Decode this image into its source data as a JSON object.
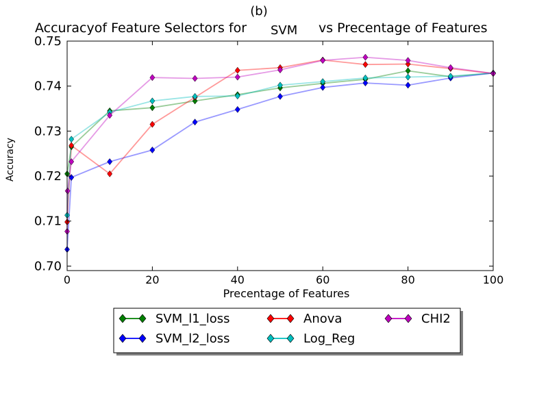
{
  "chart_data": {
    "type": "line",
    "label_top": "(b)",
    "title_left": "Accuracyof Feature Selectors for",
    "title_mid": "SVM",
    "title_right": "vs Precentage of Features",
    "xlabel": "Precentage of Features",
    "ylabel": "Accuracy",
    "xlim": [
      0,
      100
    ],
    "ylim": [
      0.699,
      0.75
    ],
    "xticks": [
      {
        "v": 0,
        "label": "0"
      },
      {
        "v": 20,
        "label": "20"
      },
      {
        "v": 40,
        "label": "40"
      },
      {
        "v": 60,
        "label": "60"
      },
      {
        "v": 80,
        "label": "80"
      },
      {
        "v": 100,
        "label": "100"
      }
    ],
    "yticks": [
      {
        "v": 0.7,
        "label": "0.70"
      },
      {
        "v": 0.71,
        "label": "0.71"
      },
      {
        "v": 0.72,
        "label": "0.72"
      },
      {
        "v": 0.73,
        "label": "0.73"
      },
      {
        "v": 0.74,
        "label": "0.74"
      },
      {
        "v": 0.75,
        "label": "0.75"
      }
    ],
    "grid": false,
    "legend_position": "below",
    "series": [
      {
        "name": "SVM_l1_loss",
        "color": "#008000",
        "x": [
          0,
          1,
          10,
          20,
          30,
          40,
          50,
          60,
          70,
          80,
          90,
          100
        ],
        "y": [
          0.7205,
          0.7265,
          0.7345,
          0.7352,
          0.7367,
          0.7381,
          0.7396,
          0.7406,
          0.7415,
          0.7434,
          0.7421,
          0.7429
        ]
      },
      {
        "name": "SVM_l2_loss",
        "color": "#0000ff",
        "x": [
          0,
          1,
          10,
          20,
          30,
          40,
          50,
          60,
          70,
          80,
          90,
          100
        ],
        "y": [
          0.7037,
          0.7197,
          0.7232,
          0.7258,
          0.732,
          0.7348,
          0.7377,
          0.7397,
          0.7407,
          0.7402,
          0.7418,
          0.7429
        ]
      },
      {
        "name": "Anova",
        "color": "#ff0000",
        "x": [
          0,
          1,
          10,
          20,
          30,
          40,
          50,
          60,
          70,
          80,
          90,
          100
        ],
        "y": [
          0.7098,
          0.7268,
          0.7205,
          0.7315,
          0.7375,
          0.7435,
          0.7441,
          0.7458,
          0.7448,
          0.7449,
          0.7439,
          0.7428
        ]
      },
      {
        "name": "Log_Reg",
        "color": "#00bfbf",
        "x": [
          0,
          1,
          10,
          20,
          30,
          40,
          50,
          60,
          70,
          80,
          90,
          100
        ],
        "y": [
          0.7113,
          0.7282,
          0.7342,
          0.7367,
          0.7377,
          0.7378,
          0.7402,
          0.741,
          0.7418,
          0.742,
          0.7422,
          0.7429
        ]
      },
      {
        "name": "CHI2",
        "color": "#bf00bf",
        "x": [
          0,
          0.1,
          1,
          10,
          20,
          30,
          40,
          50,
          60,
          70,
          80,
          90,
          100
        ],
        "y": [
          0.7077,
          0.7167,
          0.7232,
          0.7335,
          0.7419,
          0.7417,
          0.742,
          0.7436,
          0.7457,
          0.7464,
          0.7457,
          0.7441,
          0.7428
        ]
      }
    ],
    "legend_order": [
      0,
      2,
      4,
      1,
      3
    ]
  }
}
